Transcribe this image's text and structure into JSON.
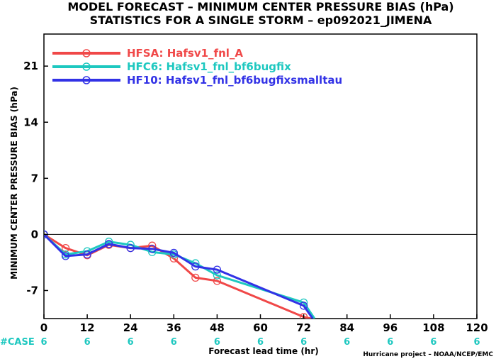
{
  "chart_data": {
    "type": "line",
    "title": "MODEL FORECAST – MINIMUM CENTER PRESSURE BIAS (hPa)",
    "subtitle": "STATISTICS FOR A SINGLE STORM – ep092021_JIMENA",
    "xlabel": "Forecast lead time (hr)",
    "ylabel": "MINIMUM CENTER PRESSURE BIAS (hPa)",
    "xlim": [
      0,
      120
    ],
    "ylim": [
      -10.5,
      25
    ],
    "xticks": [
      "0",
      "12",
      "24",
      "36",
      "48",
      "60",
      "72",
      "84",
      "96",
      "108",
      "120"
    ],
    "yticks": [
      "21",
      "14",
      "7",
      "0",
      "-7"
    ],
    "case_label": "#CASE",
    "cases": [
      {
        "x": 0,
        "n": "6"
      },
      {
        "x": 12,
        "n": "6"
      },
      {
        "x": 24,
        "n": "6"
      },
      {
        "x": 36,
        "n": "6"
      },
      {
        "x": 48,
        "n": "6"
      },
      {
        "x": 60,
        "n": "6"
      },
      {
        "x": 72,
        "n": "6"
      },
      {
        "x": 84,
        "n": "6"
      },
      {
        "x": 96,
        "n": "6"
      },
      {
        "x": 108,
        "n": "6"
      },
      {
        "x": 120,
        "n": "6"
      }
    ],
    "grid": false,
    "legend_position": "top-left",
    "series": [
      {
        "name": "HFSA: Hafsv1_fnl_A",
        "color": "#f04848",
        "points": [
          [
            0,
            0
          ],
          [
            6,
            -1.7
          ],
          [
            12,
            -2.6
          ],
          [
            18,
            -1.3
          ],
          [
            24,
            -1.7
          ],
          [
            30,
            -1.4
          ],
          [
            36,
            -3.0
          ],
          [
            42,
            -5.4
          ],
          [
            48,
            -5.8
          ],
          [
            72,
            -10.3
          ],
          [
            74,
            -10.5
          ]
        ],
        "markers": [
          [
            0,
            0
          ],
          [
            6,
            -1.7
          ],
          [
            12,
            -2.6
          ],
          [
            18,
            -1.3
          ],
          [
            24,
            -1.7
          ],
          [
            30,
            -1.4
          ],
          [
            36,
            -3.0
          ],
          [
            42,
            -5.4
          ],
          [
            48,
            -5.8
          ],
          [
            72,
            -10.3
          ]
        ]
      },
      {
        "name": "HFC6: Hafsv1_fnl_bf6bugfix",
        "color": "#1ec8c0",
        "points": [
          [
            0,
            0
          ],
          [
            6,
            -2.5
          ],
          [
            12,
            -2.1
          ],
          [
            18,
            -0.9
          ],
          [
            24,
            -1.3
          ],
          [
            30,
            -2.2
          ],
          [
            36,
            -2.5
          ],
          [
            42,
            -3.6
          ],
          [
            48,
            -5.1
          ],
          [
            72,
            -8.5
          ],
          [
            75,
            -10.5
          ]
        ],
        "markers": [
          [
            0,
            0
          ],
          [
            6,
            -2.5
          ],
          [
            12,
            -2.1
          ],
          [
            18,
            -0.9
          ],
          [
            24,
            -1.3
          ],
          [
            30,
            -2.2
          ],
          [
            36,
            -2.5
          ],
          [
            42,
            -3.6
          ],
          [
            48,
            -5.1
          ],
          [
            72,
            -8.5
          ]
        ]
      },
      {
        "name": "HF10: Hafsv1_fnl_bf6bugfixsmalltau",
        "color": "#3232e6",
        "points": [
          [
            0,
            0
          ],
          [
            6,
            -2.7
          ],
          [
            12,
            -2.5
          ],
          [
            18,
            -1.2
          ],
          [
            24,
            -1.7
          ],
          [
            30,
            -1.8
          ],
          [
            36,
            -2.3
          ],
          [
            42,
            -4.0
          ],
          [
            48,
            -4.4
          ],
          [
            72,
            -8.9
          ],
          [
            74.5,
            -10.5
          ]
        ],
        "markers": [
          [
            0,
            0
          ],
          [
            6,
            -2.7
          ],
          [
            12,
            -2.5
          ],
          [
            18,
            -1.2
          ],
          [
            24,
            -1.7
          ],
          [
            30,
            -1.8
          ],
          [
            36,
            -2.3
          ],
          [
            42,
            -4.0
          ],
          [
            48,
            -4.4
          ],
          [
            72,
            -8.9
          ]
        ]
      }
    ]
  },
  "credit": "Hurricane project – NOAA/NCEP/EMC"
}
